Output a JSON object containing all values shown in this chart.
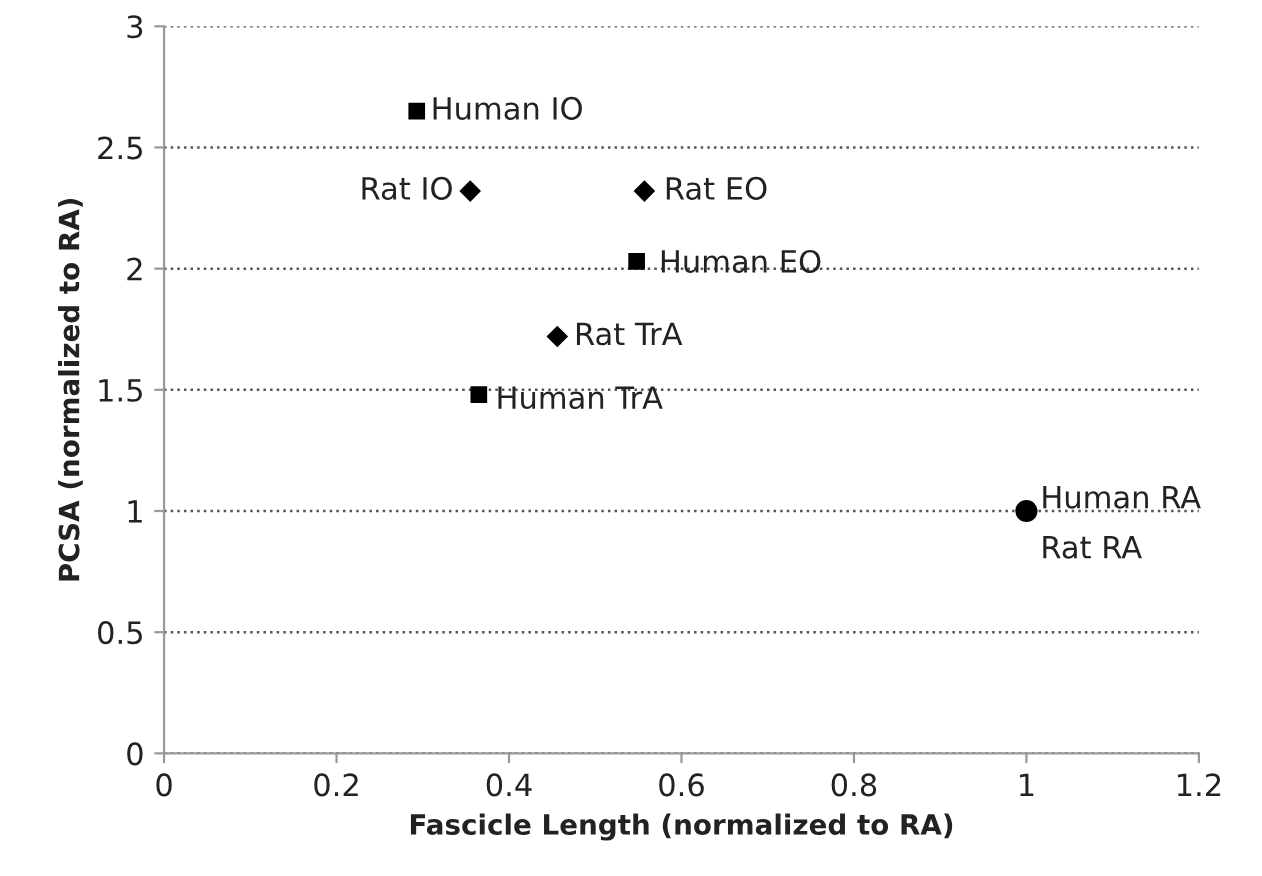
{
  "chart_data": {
    "type": "scatter",
    "xlabel": "Fascicle Length (normalized to RA)",
    "ylabel": "PCSA (normalized to RA)",
    "xlim": [
      0,
      1.2
    ],
    "xticks": [
      0,
      0.2,
      0.4,
      0.6,
      0.8,
      1,
      1.2
    ],
    "ylim": [
      0,
      3
    ],
    "yticks": [
      0,
      0.5,
      1,
      1.5,
      2,
      2.5,
      3
    ],
    "grid": "y",
    "legend": false,
    "series": [
      {
        "color": "#000000",
        "marker": "square",
        "x": [
          0.293,
          0.548,
          0.365
        ],
        "values": [
          2.65,
          2.03,
          1.48
        ]
      },
      {
        "color": "#000000",
        "marker": "diamond",
        "x": [
          0.355,
          0.557,
          0.456
        ],
        "values": [
          2.32,
          2.32,
          1.72
        ]
      },
      {
        "color": "#000000",
        "marker": "circle",
        "x": [
          1.0
        ],
        "values": [
          1.0
        ]
      }
    ],
    "annotations": [
      {
        "text": "Human IO",
        "x": 0.293,
        "y": 2.65
      },
      {
        "text": "Rat IO",
        "x": 0.355,
        "y": 2.32
      },
      {
        "text": "Rat EO",
        "x": 0.557,
        "y": 2.32
      },
      {
        "text": "Human EO",
        "x": 0.548,
        "y": 2.03
      },
      {
        "text": "Rat TrA",
        "x": 0.456,
        "y": 1.72
      },
      {
        "text": "Human TrA",
        "x": 0.365,
        "y": 1.48
      },
      {
        "text": "Human RA",
        "x": 1.0,
        "y": 1.0
      },
      {
        "text": "Rat RA",
        "x": 1.0,
        "y": 1.0
      }
    ]
  }
}
